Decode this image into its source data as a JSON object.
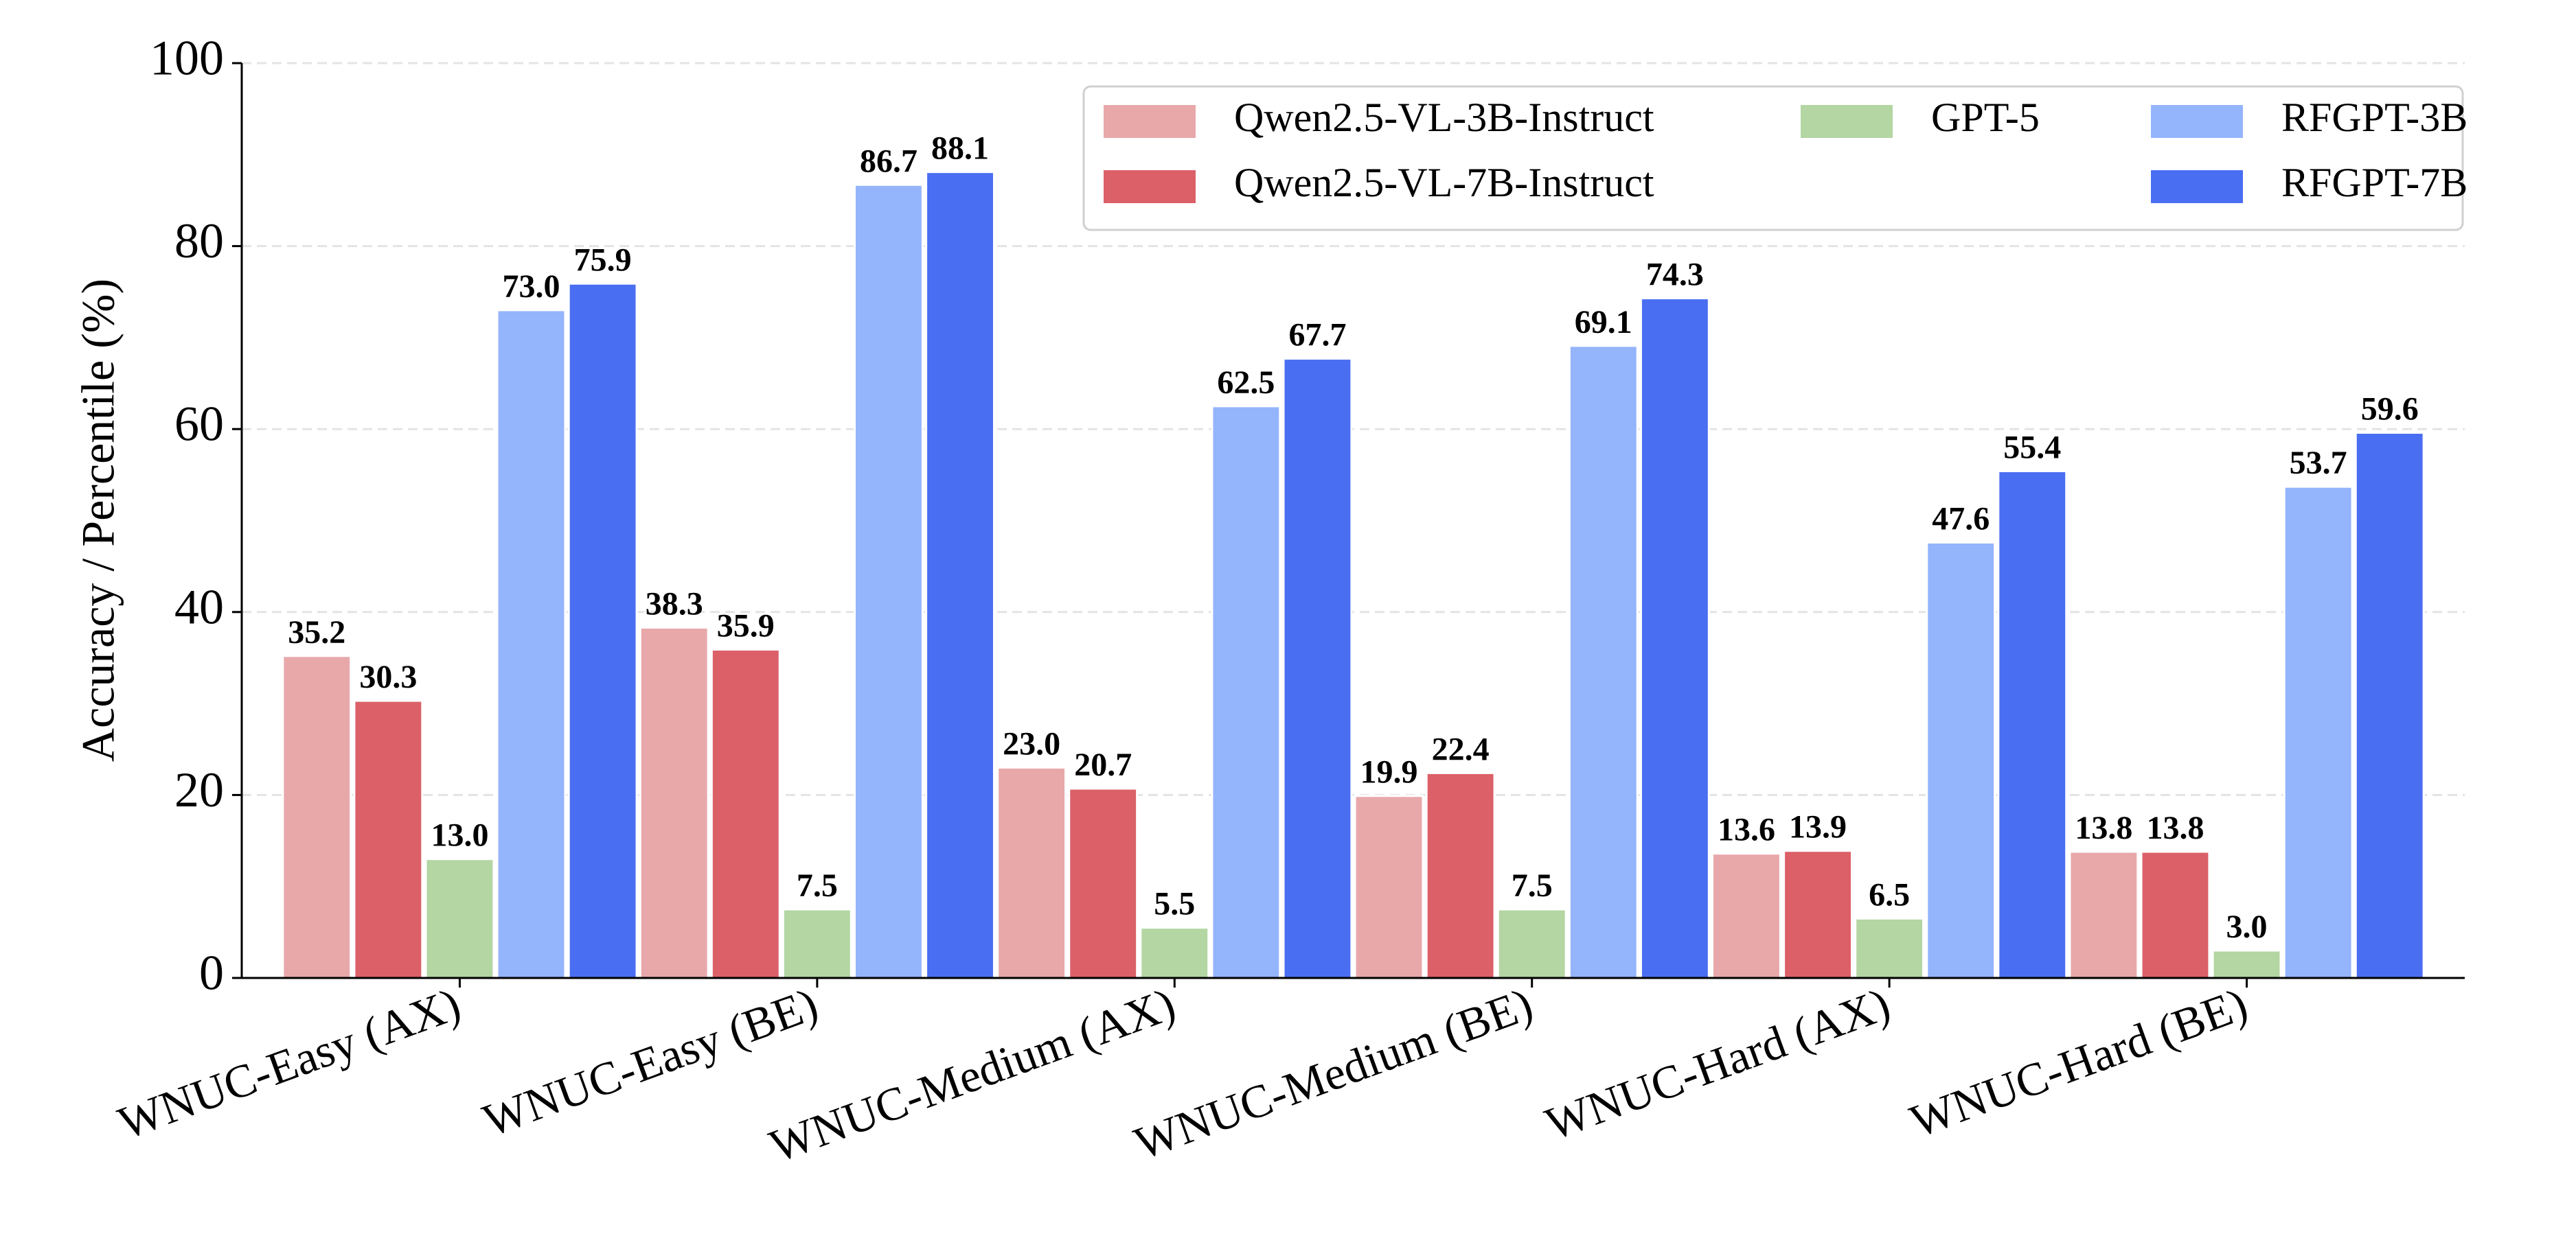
{
  "chart_data": {
    "type": "bar",
    "y_label": "Accuracy / Percentile (%)",
    "categories": [
      "WNUC-Easy (AX)",
      "WNUC-Easy (BE)",
      "WNUC-Medium (AX)",
      "WNUC-Medium (BE)",
      "WNUC-Hard (AX)",
      "WNUC-Hard (BE)"
    ],
    "series": [
      {
        "name": "Qwen2.5-VL-3B-Instruct",
        "color": "#e8a8aa",
        "values": [
          35.2,
          38.3,
          23.0,
          19.9,
          13.6,
          13.8
        ],
        "value_labels": [
          "35.2",
          "38.3",
          "23.0",
          "19.9",
          "13.6",
          "13.8"
        ]
      },
      {
        "name": "Qwen2.5-VL-7B-Instruct",
        "color": "#db6068",
        "values": [
          30.3,
          35.9,
          20.7,
          22.4,
          13.9,
          13.8
        ],
        "value_labels": [
          "30.3",
          "35.9",
          "20.7",
          "22.4",
          "13.9",
          "13.8"
        ]
      },
      {
        "name": "GPT-5",
        "color": "#b3d6a3",
        "values": [
          13.0,
          7.5,
          5.5,
          7.5,
          6.5,
          3.0
        ],
        "value_labels": [
          "13.0",
          "7.5",
          "5.5",
          "7.5",
          "6.5",
          "3.0"
        ]
      },
      {
        "name": "RFGPT-3B",
        "color": "#94b4fc",
        "values": [
          73.0,
          86.7,
          62.5,
          69.1,
          47.6,
          53.7
        ],
        "value_labels": [
          "73.0",
          "86.7",
          "62.5",
          "69.1",
          "47.6",
          "53.7"
        ]
      },
      {
        "name": "RFGPT-7B",
        "color": "#4a6ef2",
        "values": [
          75.9,
          88.1,
          67.7,
          74.3,
          55.4,
          59.6
        ],
        "value_labels": [
          "75.9",
          "88.1",
          "67.7",
          "74.3",
          "55.4",
          "59.6"
        ]
      }
    ],
    "ylim": [
      0,
      100
    ],
    "yticks": [
      0,
      20,
      40,
      60,
      80,
      100
    ],
    "grid": true,
    "legend": "upper right"
  }
}
